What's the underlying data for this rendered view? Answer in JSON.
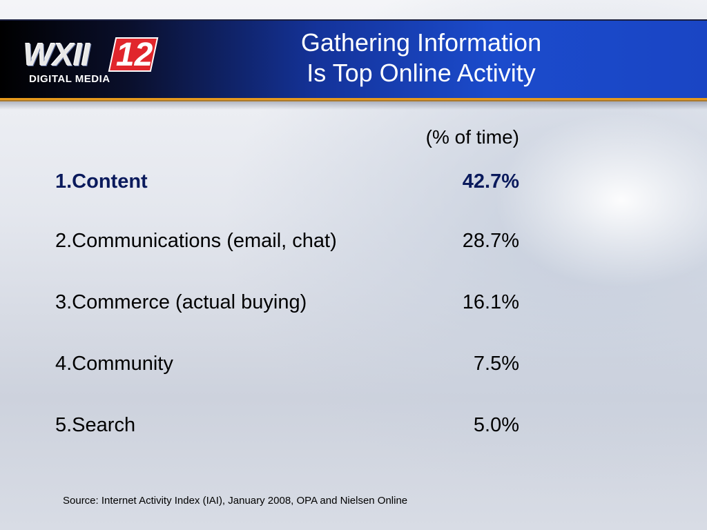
{
  "logo": {
    "main": "WXII",
    "number": "12",
    "sub": "DIGITAL MEDIA"
  },
  "title": {
    "line1": "Gathering Information",
    "line2": "Is Top Online Activity"
  },
  "column_header": "(% of time)",
  "rows": [
    {
      "label": "1.Content",
      "value": "42.7%"
    },
    {
      "label": "2.Communications (email, chat)",
      "value": "28.7%"
    },
    {
      "label": "3.Commerce (actual buying)",
      "value": "16.1%"
    },
    {
      "label": "4.Community",
      "value": "7.5%"
    },
    {
      "label": "5.Search",
      "value": "5.0%"
    }
  ],
  "source": "Source: Internet Activity Index (IAI), January 2008, OPA and Nielsen Online",
  "colors": {
    "header_blue": "#1b4bcc",
    "header_accent": "#e79a1c",
    "logo_red": "#e1262c",
    "highlight_text": "#0a1a5c"
  }
}
